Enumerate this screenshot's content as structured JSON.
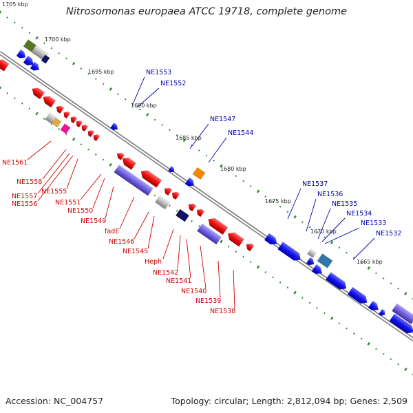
{
  "title": "Nitrosomonas europaea ATCC 19718, complete genome",
  "footer": {
    "accession": "Accession: NC_004757",
    "stats": "Topology: circular; Length: 2,812,094 bp; Genes: 2,509"
  },
  "kbp_labels": [
    "1705 kbp",
    "1700 kbp",
    "1695 kbp",
    "1690 kbp",
    "1685 kbp",
    "1680 kbp",
    "1675 kbp",
    "1670 kbp",
    "1665 kbp"
  ],
  "reverse_genes": [
    "NE1561",
    "NE1558",
    "NE1557",
    "NE1556",
    "NE1555",
    "NE1551",
    "NE1550",
    "NE1549",
    "fadE",
    "NE1546",
    "NE1545",
    "Heph",
    "NE1542",
    "NE1541",
    "NE1540",
    "NE1539",
    "NE1538"
  ],
  "forward_genes": [
    "NE1553",
    "NE1552",
    "NE1547",
    "NE1544",
    "NE1537",
    "NE1536",
    "NE1535",
    "NE1534",
    "NE1533",
    "NE1532"
  ],
  "colors": {
    "forward": "#0000ee",
    "reverse": "#ee0000",
    "backbone": "#888888",
    "ticks": "#228822"
  }
}
